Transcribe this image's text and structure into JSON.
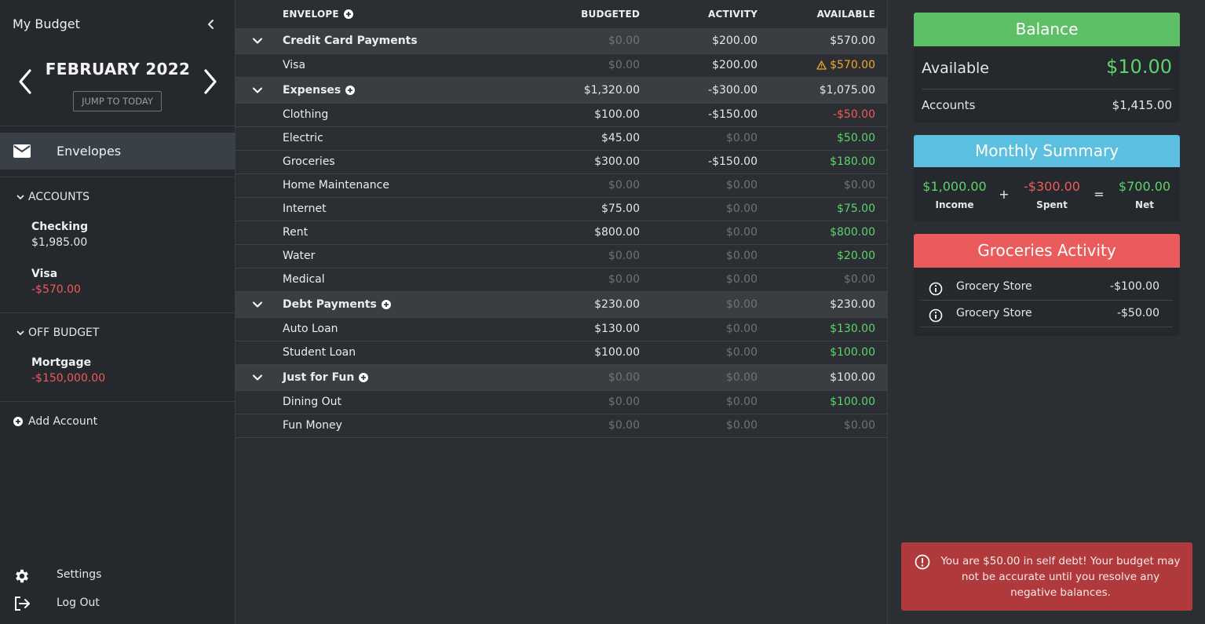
{
  "app": {
    "title": "My Budget"
  },
  "month": {
    "label": "FEBRUARY 2022",
    "jump_label": "JUMP TO TODAY"
  },
  "nav": {
    "envelopes_label": "Envelopes"
  },
  "accounts": {
    "heading": "ACCOUNTS",
    "items": [
      {
        "name": "Checking",
        "balance": "$1,985.00"
      },
      {
        "name": "Visa",
        "balance": "-$570.00"
      }
    ]
  },
  "off_budget": {
    "heading": "OFF BUDGET",
    "items": [
      {
        "name": "Mortgage",
        "balance": "-$150,000.00"
      }
    ]
  },
  "add_account_label": "Add Account",
  "settings_label": "Settings",
  "logout_label": "Log Out",
  "table": {
    "headers": {
      "envelope": "ENVELOPE",
      "budgeted": "BUDGETED",
      "activity": "ACTIVITY",
      "available": "AVAILABLE"
    },
    "rows": [
      {
        "type": "group",
        "name": "Credit Card Payments",
        "add": false,
        "budgeted": "$0.00",
        "activity": "$200.00",
        "available": "$570.00",
        "b_style": "muted",
        "a_style": "plain",
        "v_style": "plain"
      },
      {
        "type": "item",
        "name": "Visa",
        "budgeted": "$0.00",
        "activity": "$200.00",
        "available": "$570.00",
        "b_style": "muted",
        "a_style": "plain",
        "v_style": "warn",
        "warning": true
      },
      {
        "type": "group",
        "name": "Expenses",
        "add": true,
        "budgeted": "$1,320.00",
        "activity": "-$300.00",
        "available": "$1,075.00",
        "b_style": "plain",
        "a_style": "plain",
        "v_style": "plain"
      },
      {
        "type": "item",
        "name": "Clothing",
        "budgeted": "$100.00",
        "activity": "-$150.00",
        "available": "-$50.00",
        "b_style": "plain",
        "a_style": "plain",
        "v_style": "neg"
      },
      {
        "type": "item",
        "name": "Electric",
        "budgeted": "$45.00",
        "activity": "$0.00",
        "available": "$50.00",
        "b_style": "plain",
        "a_style": "muted",
        "v_style": "pos"
      },
      {
        "type": "item",
        "name": "Groceries",
        "budgeted": "$300.00",
        "activity": "-$150.00",
        "available": "$180.00",
        "b_style": "plain",
        "a_style": "plain",
        "v_style": "pos"
      },
      {
        "type": "item",
        "name": "Home Maintenance",
        "budgeted": "$0.00",
        "activity": "$0.00",
        "available": "$0.00",
        "b_style": "muted",
        "a_style": "muted",
        "v_style": "muted"
      },
      {
        "type": "item",
        "name": "Internet",
        "budgeted": "$75.00",
        "activity": "$0.00",
        "available": "$75.00",
        "b_style": "plain",
        "a_style": "muted",
        "v_style": "pos"
      },
      {
        "type": "item",
        "name": "Rent",
        "budgeted": "$800.00",
        "activity": "$0.00",
        "available": "$800.00",
        "b_style": "plain",
        "a_style": "muted",
        "v_style": "pos"
      },
      {
        "type": "item",
        "name": "Water",
        "budgeted": "$0.00",
        "activity": "$0.00",
        "available": "$20.00",
        "b_style": "muted",
        "a_style": "muted",
        "v_style": "pos"
      },
      {
        "type": "item",
        "name": "Medical",
        "budgeted": "$0.00",
        "activity": "$0.00",
        "available": "$0.00",
        "b_style": "muted",
        "a_style": "muted",
        "v_style": "muted"
      },
      {
        "type": "group",
        "name": "Debt Payments",
        "add": true,
        "budgeted": "$230.00",
        "activity": "$0.00",
        "available": "$230.00",
        "b_style": "plain",
        "a_style": "muted",
        "v_style": "plain"
      },
      {
        "type": "item",
        "name": "Auto Loan",
        "budgeted": "$130.00",
        "activity": "$0.00",
        "available": "$130.00",
        "b_style": "plain",
        "a_style": "muted",
        "v_style": "pos"
      },
      {
        "type": "item",
        "name": "Student Loan",
        "budgeted": "$100.00",
        "activity": "$0.00",
        "available": "$100.00",
        "b_style": "plain",
        "a_style": "muted",
        "v_style": "pos"
      },
      {
        "type": "group",
        "name": "Just for Fun",
        "add": true,
        "budgeted": "$0.00",
        "activity": "$0.00",
        "available": "$100.00",
        "b_style": "muted",
        "a_style": "muted",
        "v_style": "plain"
      },
      {
        "type": "item",
        "name": "Dining Out",
        "budgeted": "$0.00",
        "activity": "$0.00",
        "available": "$100.00",
        "b_style": "muted",
        "a_style": "muted",
        "v_style": "pos"
      },
      {
        "type": "item",
        "name": "Fun Money",
        "budgeted": "$0.00",
        "activity": "$0.00",
        "available": "$0.00",
        "b_style": "muted",
        "a_style": "muted",
        "v_style": "muted"
      }
    ]
  },
  "balance": {
    "title": "Balance",
    "available_label": "Available",
    "available_value": "$10.00",
    "accounts_label": "Accounts",
    "accounts_value": "$1,415.00"
  },
  "summary": {
    "title": "Monthly Summary",
    "income_value": "$1,000.00",
    "income_label": "Income",
    "plus": "+",
    "spent_value": "-$300.00",
    "spent_label": "Spent",
    "equals": "=",
    "net_value": "$700.00",
    "net_label": "Net"
  },
  "activity": {
    "title": "Groceries Activity",
    "transactions": [
      {
        "name": "Grocery Store",
        "amount": "-$100.00"
      },
      {
        "name": "Grocery Store",
        "amount": "-$50.00"
      }
    ]
  },
  "toast": {
    "message": "You are $50.00 in self debt! Your budget may not be accurate until you resolve any negative balances."
  },
  "colors": {
    "balance_header": "#5dc066",
    "summary_header": "#5bbfdf",
    "activity_header": "#ec5b5b",
    "positive": "#5dd36b",
    "negative": "#ef5a5a",
    "warning": "#f6a623",
    "toast_bg": "#b0393c"
  }
}
